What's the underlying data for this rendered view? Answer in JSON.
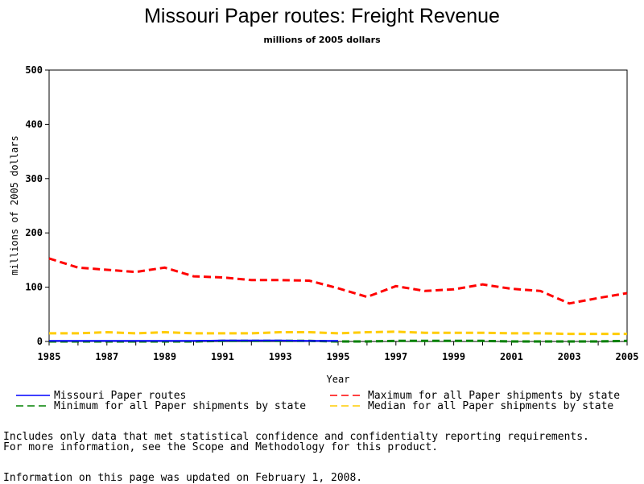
{
  "chart_data": {
    "type": "line",
    "title": "Missouri Paper routes: Freight Revenue",
    "subtitle": "millions of 2005 dollars",
    "xlabel": "Year",
    "ylabel": "millions of 2005 dollars",
    "xlim": [
      1985,
      2005
    ],
    "ylim": [
      0,
      500
    ],
    "x_ticks": [
      "1985",
      "1987",
      "1989",
      "1991",
      "1993",
      "1995",
      "1997",
      "1999",
      "2001",
      "2003",
      "2005"
    ],
    "y_ticks": [
      "0",
      "100",
      "200",
      "300",
      "400",
      "500"
    ],
    "grid": false,
    "legend_position": "bottom",
    "x": [
      1985,
      1986,
      1987,
      1988,
      1989,
      1990,
      1991,
      1992,
      1993,
      1994,
      1995,
      1996,
      1997,
      1998,
      1999,
      2000,
      2001,
      2002,
      2003,
      2004,
      2005
    ],
    "series": [
      {
        "name": "Missouri Paper routes",
        "color": "#0000ff",
        "dash": "solid",
        "values": [
          1,
          1,
          1,
          1,
          1,
          1,
          2,
          2,
          2,
          1,
          1,
          null,
          null,
          null,
          null,
          null,
          null,
          null,
          null,
          null,
          null
        ]
      },
      {
        "name": "Maximum for all Paper shipments by state",
        "color": "#ff0000",
        "dash": "dashed",
        "values": [
          153,
          136,
          132,
          128,
          136,
          120,
          118,
          113,
          113,
          112,
          98,
          82,
          102,
          93,
          96,
          105,
          97,
          93,
          70,
          80,
          89
        ]
      },
      {
        "name": "Minimum for all Paper shipments by state",
        "color": "#008000",
        "dash": "dashed",
        "values": [
          0,
          0,
          0,
          0,
          0,
          0,
          1,
          1,
          1,
          1,
          0,
          0,
          1,
          1,
          1,
          1,
          0,
          0,
          0,
          0,
          1
        ]
      },
      {
        "name": "Median for all Paper shipments by state",
        "color": "#ffcc00",
        "dash": "dashed",
        "values": [
          15,
          15,
          17,
          15,
          17,
          15,
          15,
          15,
          17,
          17,
          15,
          17,
          18,
          16,
          16,
          16,
          15,
          15,
          14,
          14,
          14
        ]
      }
    ]
  },
  "notes": {
    "line1": "Includes only data that met statistical confidence and confidentialty reporting requirements.",
    "line2": "For more information, see the Scope and Methodology for this product.",
    "line3": "Information on this page was updated on February 1, 2008."
  }
}
